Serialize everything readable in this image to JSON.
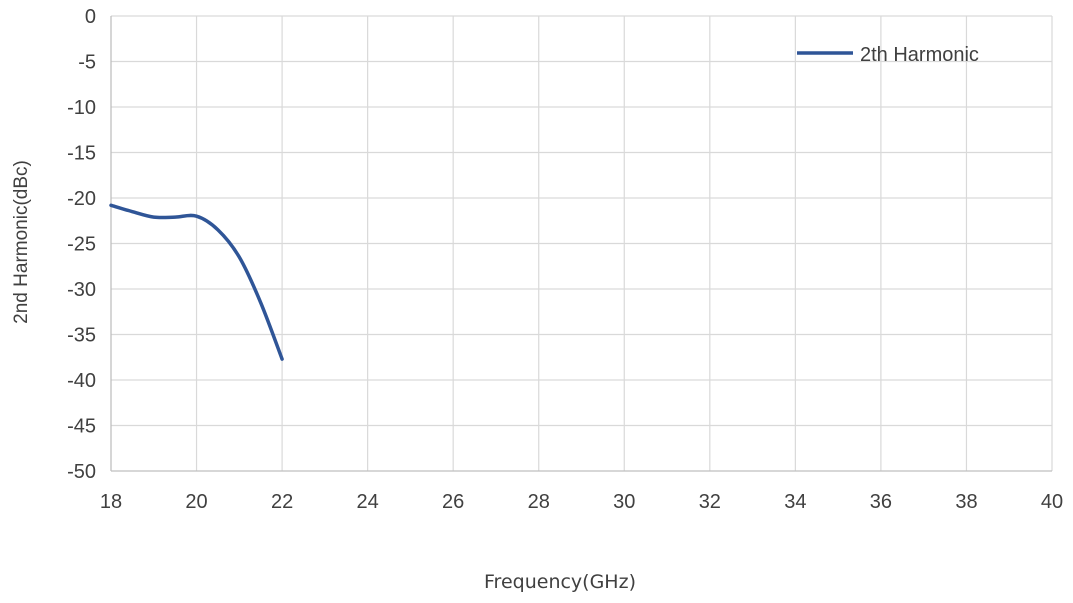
{
  "chart_data": {
    "type": "line",
    "title": "",
    "xlabel": "Frequency(GHz)",
    "ylabel": "2nd Harmonic(dBc)",
    "xlim": [
      18,
      40
    ],
    "ylim": [
      -50,
      0
    ],
    "x_ticks": [
      18,
      20,
      22,
      24,
      26,
      28,
      30,
      32,
      34,
      36,
      38,
      40
    ],
    "y_ticks": [
      0,
      -5,
      -10,
      -15,
      -20,
      -25,
      -30,
      -35,
      -40,
      -45,
      -50
    ],
    "grid": true,
    "legend_position": "top-right",
    "series": [
      {
        "name": "2th Harmonic",
        "color": "#2f5597",
        "x": [
          18,
          18.5,
          19,
          19.5,
          20,
          20.5,
          21,
          21.5,
          22
        ],
        "y": [
          -20.8,
          -21.5,
          -22.1,
          -22.1,
          -22.0,
          -23.5,
          -26.5,
          -31.5,
          -37.7
        ]
      }
    ]
  }
}
